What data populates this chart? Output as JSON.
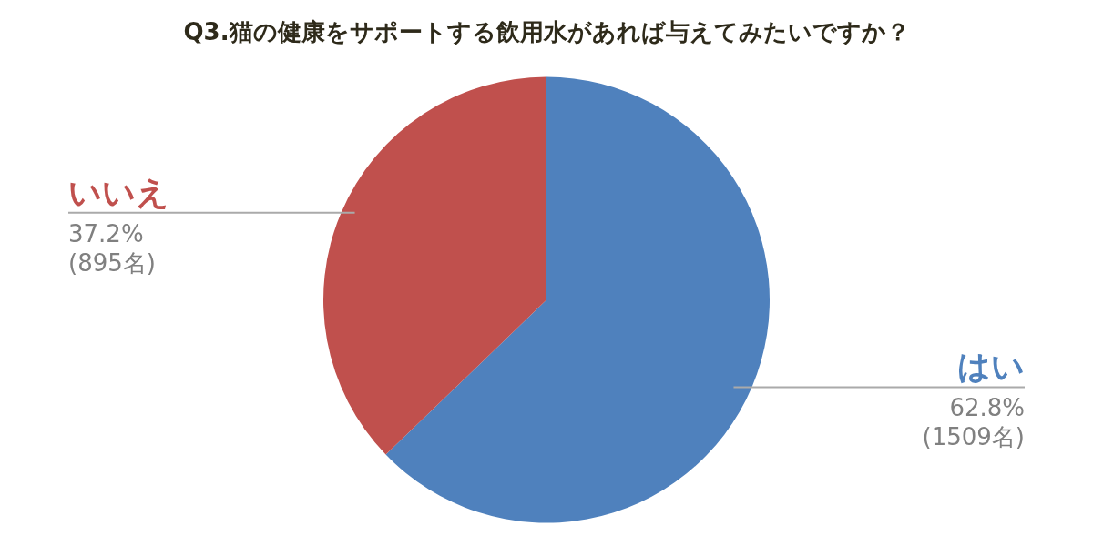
{
  "chart_data": {
    "type": "pie",
    "title": "Q3.猫の健康をサポートする飲用水があれば与えてみたいですか？",
    "categories": [
      "はい",
      "いいえ"
    ],
    "values": [
      62.8,
      37.2
    ],
    "colors": [
      "#4f81bd",
      "#c0504d"
    ],
    "value_labels": [
      "62.8% (1509名)",
      "37.2% (895名)"
    ],
    "legend": false
  }
}
